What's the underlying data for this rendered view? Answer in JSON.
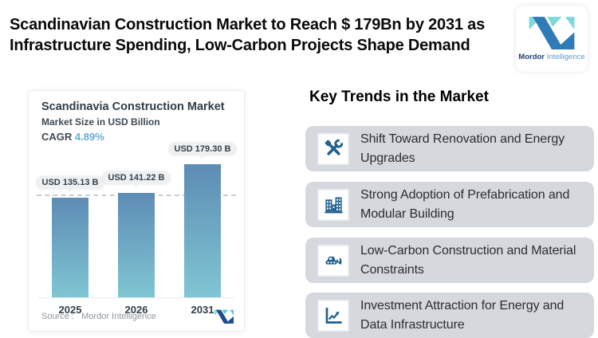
{
  "header": {
    "title": "Scandinavian Construction Market to Reach $ 179Bn by 2031 as\nInfrastructure Spending, Low-Carbon Projects Shape Demand",
    "brand": {
      "name_primary": "Mordor",
      "name_secondary": "Intelligence"
    }
  },
  "chart_card": {
    "source_label": "Source :",
    "source_value": "Mordor Intelligence"
  },
  "chart_data": {
    "type": "bar",
    "title": "Scandinavia Construction Market",
    "ylabel": "Market Size in USD Billion",
    "cagr_label": "CAGR",
    "cagr_value": "4.89%",
    "categories": [
      "2025",
      "2026",
      "2031"
    ],
    "values": [
      135.13,
      141.22,
      179.3
    ],
    "value_labels": [
      "USD 135.13 B",
      "USD 141.22 B",
      "USD 179.30 B"
    ],
    "unit": "USD Billion",
    "ylim": [
      0,
      200
    ],
    "grid": false,
    "legend": "none",
    "reference_line_value": 135.13
  },
  "trends": {
    "heading": "Key Trends in the Market",
    "items": [
      {
        "icon": "tools-icon",
        "label": "Shift Toward Renovation and Energy\nUpgrades"
      },
      {
        "icon": "buildings-icon",
        "label": "Strong Adoption of Prefabrication and\nModular Building"
      },
      {
        "icon": "bulldozer-icon",
        "label": "Low-Carbon Construction and Material\nConstraints"
      },
      {
        "icon": "chart-growth-icon",
        "label": "Investment Attraction for Energy and\nData Infrastructure"
      }
    ]
  },
  "colors": {
    "accent_blue": "#68aed0",
    "bar_gradient_top": "#5d8cb5",
    "bar_gradient_bottom": "#80c6d3",
    "trend_card_bg": "#d5d9dd",
    "icon_blue": "#21618e",
    "brand_navy": "#1c4070",
    "brand_light_blue": "#5b9bd5",
    "brand_teal": "#7ed8da",
    "brand_blue": "#2e7bb8"
  }
}
